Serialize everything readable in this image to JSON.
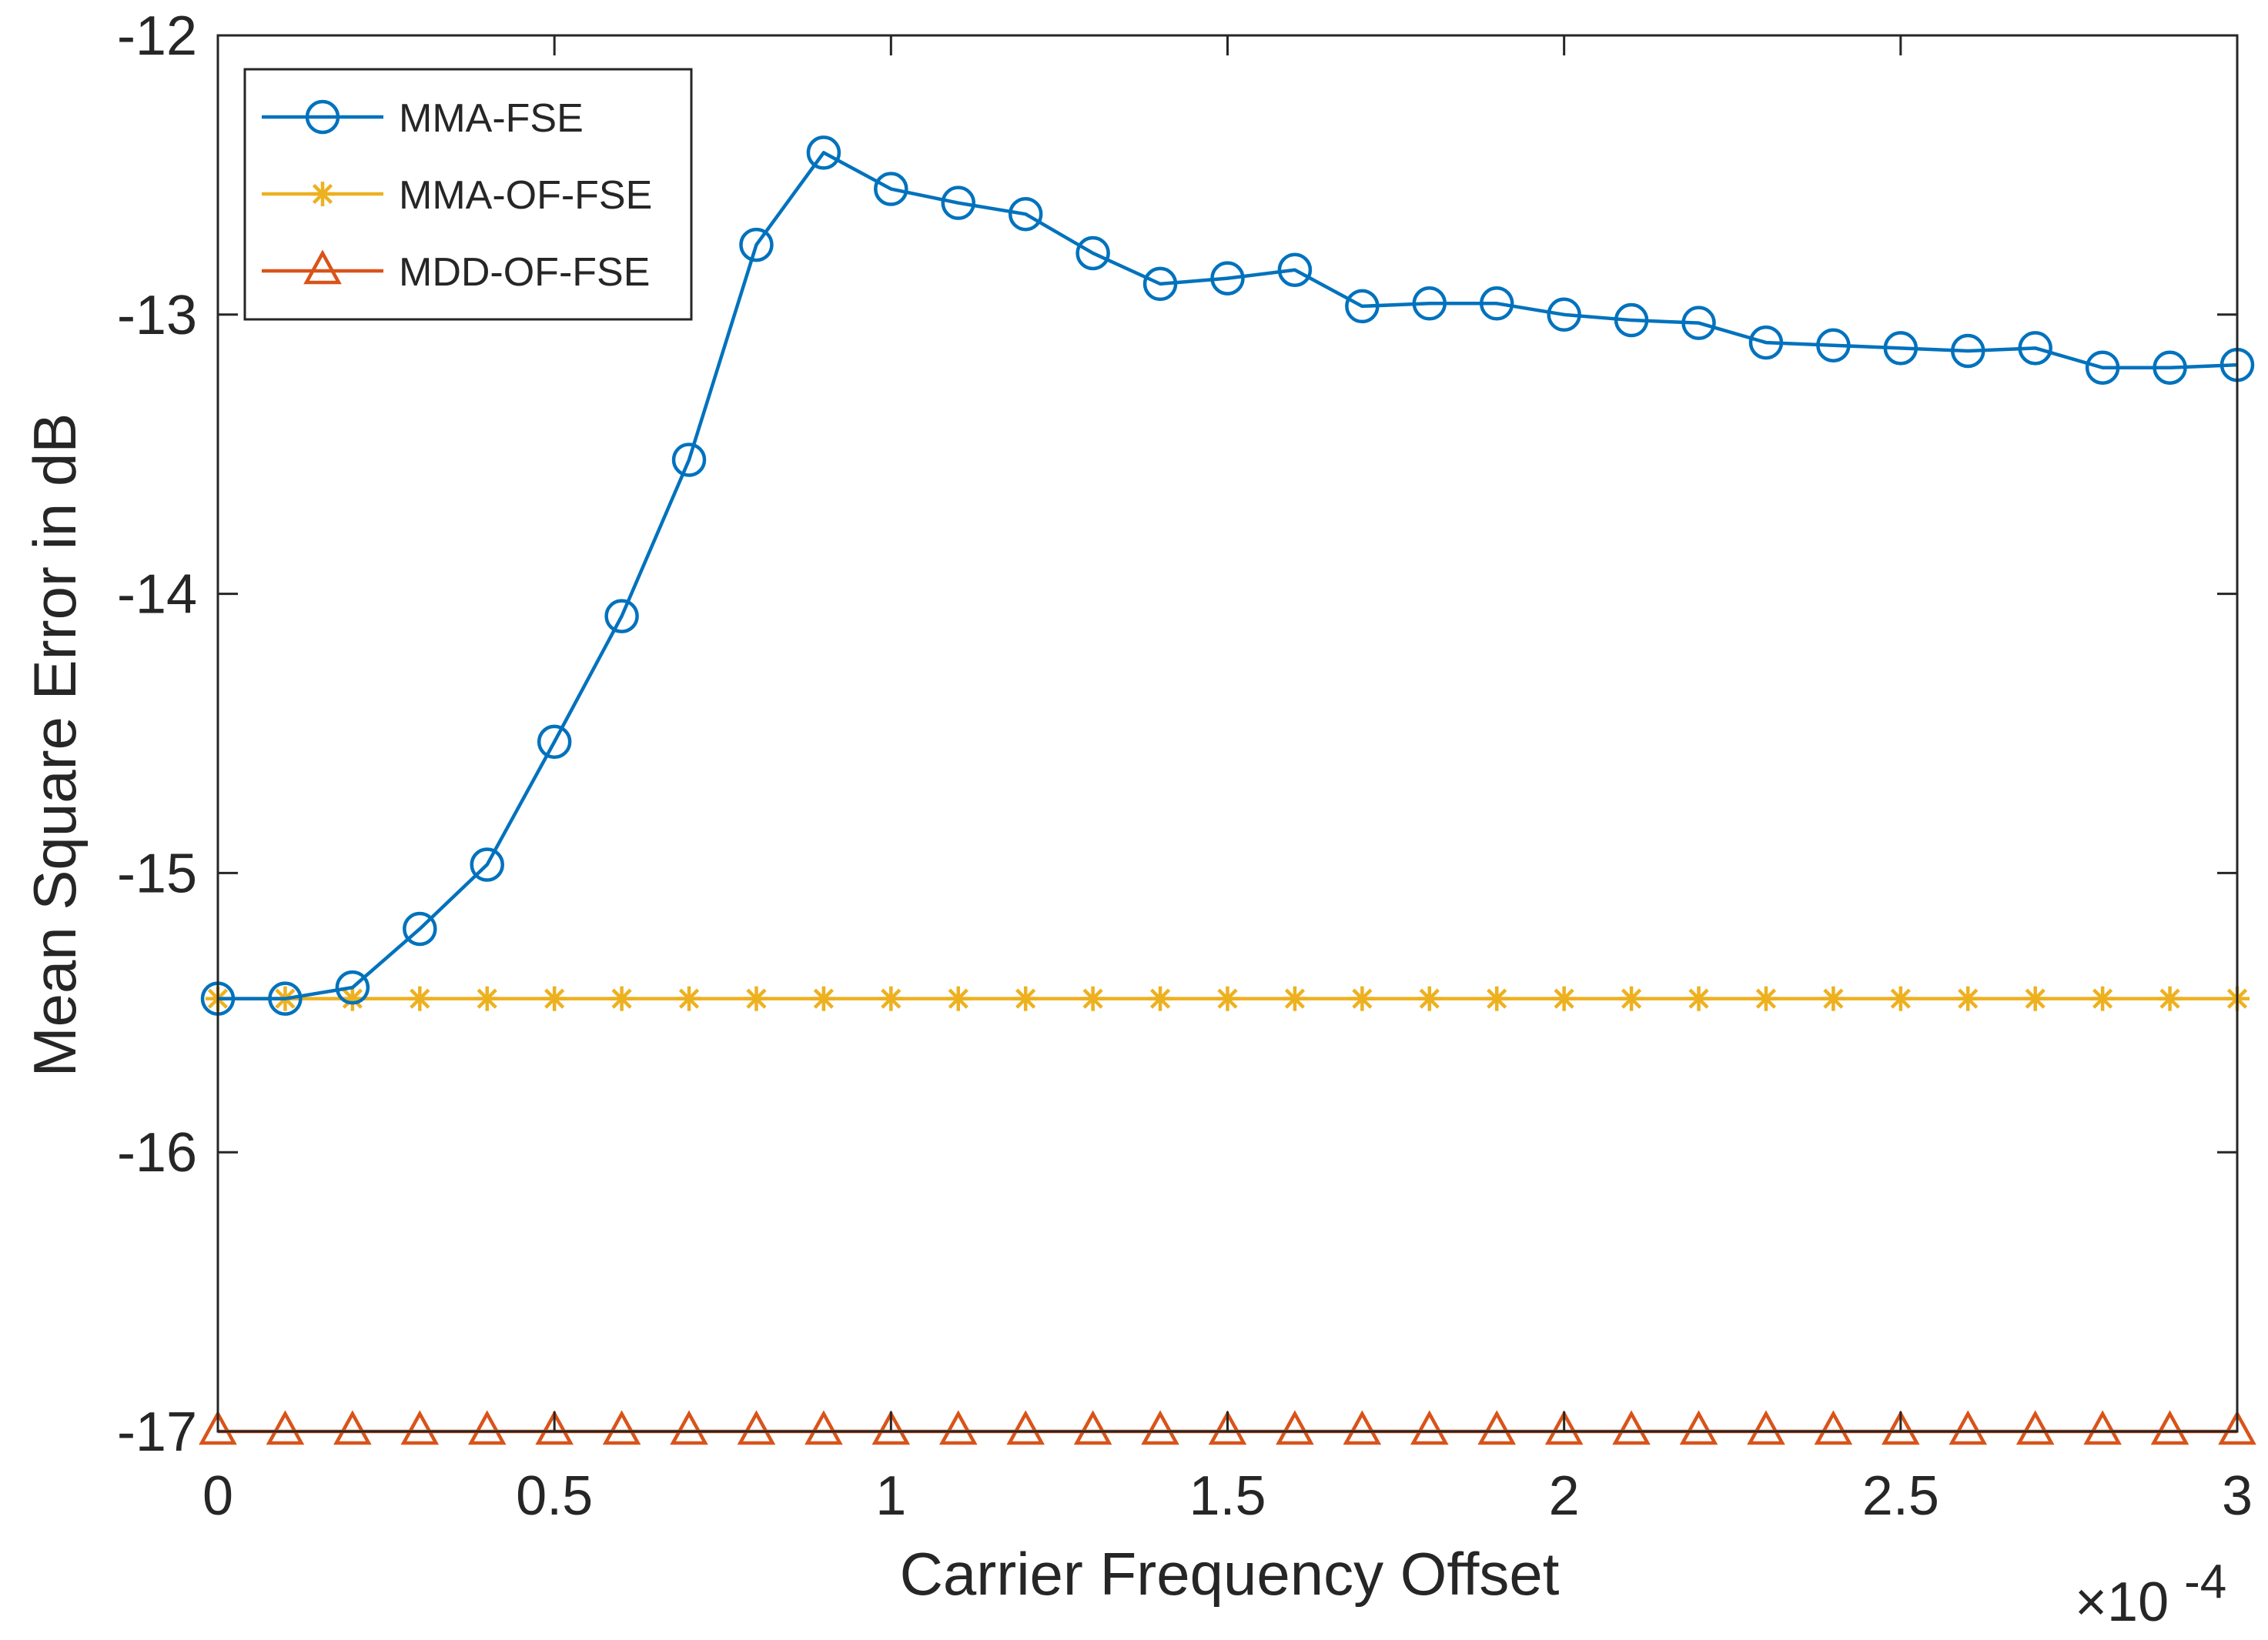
{
  "chart_data": {
    "type": "line",
    "title": "",
    "xlabel": "Carrier Frequency Offset",
    "ylabel": "Mean Square Error in dB",
    "x_multiplier_label": "×10",
    "x_multiplier_exponent": "-4",
    "xlim": [
      0,
      3
    ],
    "ylim": [
      -17,
      -12
    ],
    "xticks": [
      0,
      0.5,
      1,
      1.5,
      2,
      2.5,
      3
    ],
    "xtick_labels": [
      "0",
      "0.5",
      "1",
      "1.5",
      "2",
      "2.5",
      "3"
    ],
    "yticks": [
      -12,
      -13,
      -14,
      -15,
      -16,
      -17
    ],
    "ytick_labels": [
      "-12",
      "-13",
      "-14",
      "-15",
      "-16",
      "-17"
    ],
    "grid": false,
    "legend_position": "top-left",
    "x": [
      0,
      0.1,
      0.2,
      0.3,
      0.4,
      0.5,
      0.6,
      0.7,
      0.8,
      0.9,
      1.0,
      1.1,
      1.2,
      1.3,
      1.4,
      1.5,
      1.6,
      1.7,
      1.8,
      1.9,
      2.0,
      2.1,
      2.2,
      2.3,
      2.4,
      2.5,
      2.6,
      2.7,
      2.8,
      2.9,
      3.0
    ],
    "series": [
      {
        "name": "MMA-FSE",
        "color": "#0072BD",
        "marker": "circle",
        "values": [
          -15.45,
          -15.45,
          -15.41,
          -15.2,
          -14.97,
          -14.53,
          -14.08,
          -13.52,
          -12.75,
          -12.42,
          -12.55,
          -12.6,
          -12.64,
          -12.78,
          -12.89,
          -12.87,
          -12.84,
          -12.97,
          -12.96,
          -12.96,
          -13.0,
          -13.02,
          -13.03,
          -13.1,
          -13.11,
          -13.12,
          -13.13,
          -13.12,
          -13.19,
          -13.19,
          -13.18
        ]
      },
      {
        "name": "MMA-OF-FSE",
        "color": "#EDB120",
        "marker": "asterisk",
        "values": [
          -15.45,
          -15.45,
          -15.45,
          -15.45,
          -15.45,
          -15.45,
          -15.45,
          -15.45,
          -15.45,
          -15.45,
          -15.45,
          -15.45,
          -15.45,
          -15.45,
          -15.45,
          -15.45,
          -15.45,
          -15.45,
          -15.45,
          -15.45,
          -15.45,
          -15.45,
          -15.45,
          -15.45,
          -15.45,
          -15.45,
          -15.45,
          -15.45,
          -15.45,
          -15.45,
          -15.45
        ]
      },
      {
        "name": "MDD-OF-FSE",
        "color": "#D95319",
        "marker": "triangle",
        "values": [
          -17,
          -17,
          -17,
          -17,
          -17,
          -17,
          -17,
          -17,
          -17,
          -17,
          -17,
          -17,
          -17,
          -17,
          -17,
          -17,
          -17,
          -17,
          -17,
          -17,
          -17,
          -17,
          -17,
          -17,
          -17,
          -17,
          -17,
          -17,
          -17,
          -17,
          -17
        ]
      }
    ]
  }
}
